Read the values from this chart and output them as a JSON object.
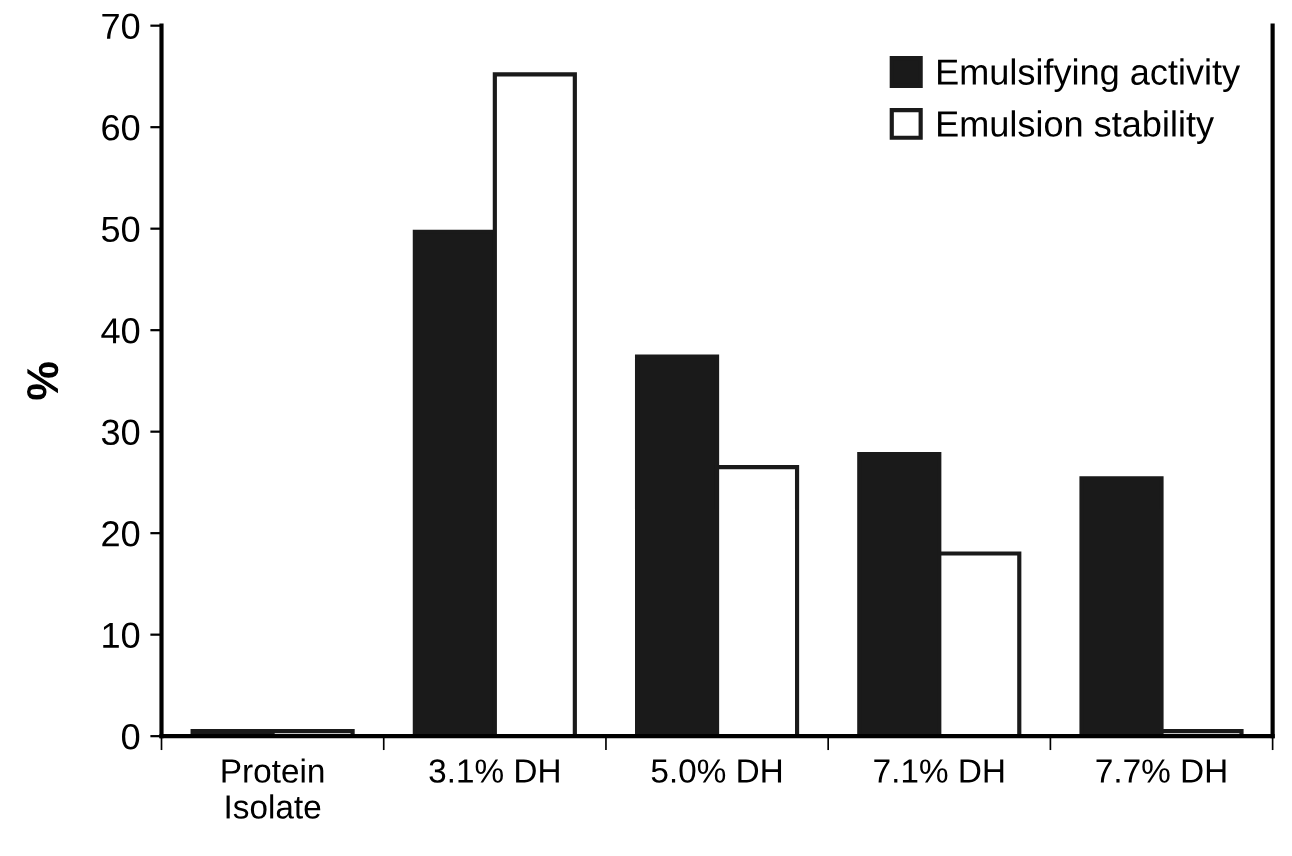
{
  "chart_data": {
    "type": "bar",
    "ylabel": "%",
    "categories": [
      "Protein\nIsolate",
      "3.1% DH",
      "5.0% DH",
      "7.1% DH",
      "7.7% DH"
    ],
    "series": [
      {
        "name": "Emulsifying activity",
        "color": "#1a1a1a",
        "values": [
          0.5,
          49.7,
          37.4,
          27.8,
          25.4
        ]
      },
      {
        "name": "Emulsion stability",
        "color": "#ffffff",
        "values": [
          0.5,
          65.2,
          26.5,
          18,
          0.5
        ]
      }
    ],
    "ylim": [
      0,
      70
    ],
    "yticks": [
      0,
      10,
      20,
      30,
      40,
      50,
      60,
      70
    ],
    "grid": false,
    "legend": "top right"
  }
}
